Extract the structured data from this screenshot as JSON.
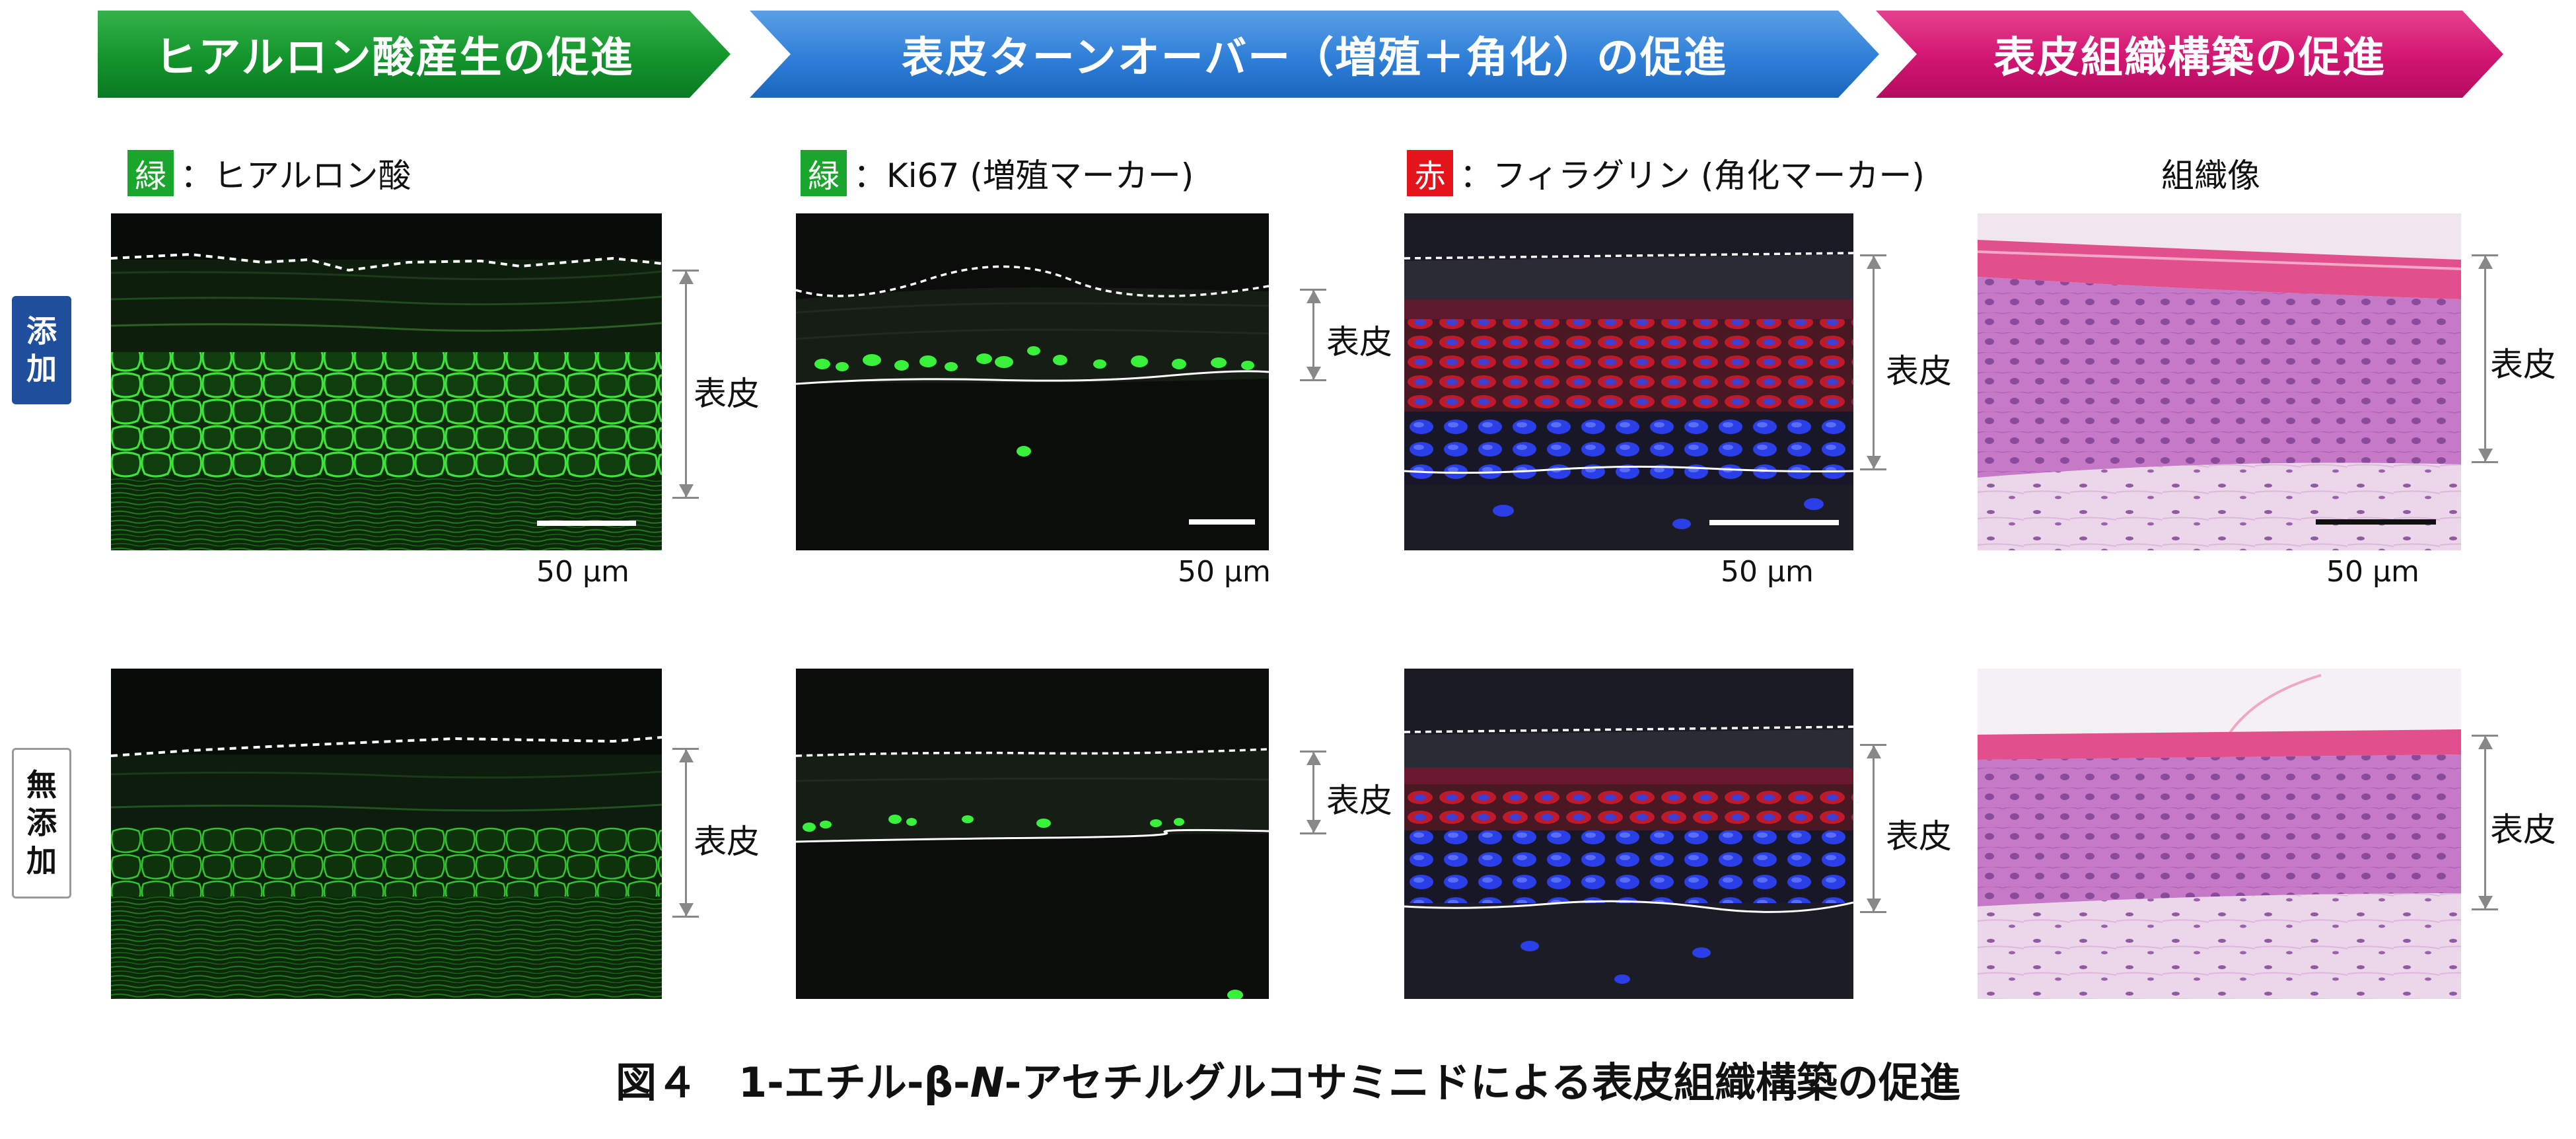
{
  "banners": [
    {
      "text": "ヒアルロン酸産生の促進",
      "color": "#13952c"
    },
    {
      "text": "表皮ターンオーバー（増殖＋角化）の促進",
      "color": "#2f7fd8"
    },
    {
      "text": "表皮組織構築の促進",
      "color": "#d11571"
    }
  ],
  "columns": [
    {
      "chip": "緑",
      "chip_color": "#1aa52d",
      "label": "：ヒアルロン酸"
    },
    {
      "chip": "緑",
      "chip_color": "#1aa52d",
      "label": "：Ki67 (増殖マーカー)"
    },
    {
      "chip": "赤",
      "chip_color": "#e4141a",
      "label": "：フィラグリン (角化マーカー)"
    },
    {
      "chip": "",
      "label": "組織像"
    }
  ],
  "rows": [
    {
      "label": "添\n加",
      "label_top": "添",
      "label_bottom": "加",
      "color": "#1f4e9c"
    },
    {
      "label": "無\n添\n加",
      "chars": [
        "無",
        "添",
        "加"
      ]
    }
  ],
  "scale_bar_label": "50 µm",
  "epidermis_label": "表皮",
  "caption": {
    "prefix": "図４　1-エチル-β-",
    "italic": "N",
    "suffix": "-アセチルグルコサミニドによる表皮組織構築の促進"
  }
}
